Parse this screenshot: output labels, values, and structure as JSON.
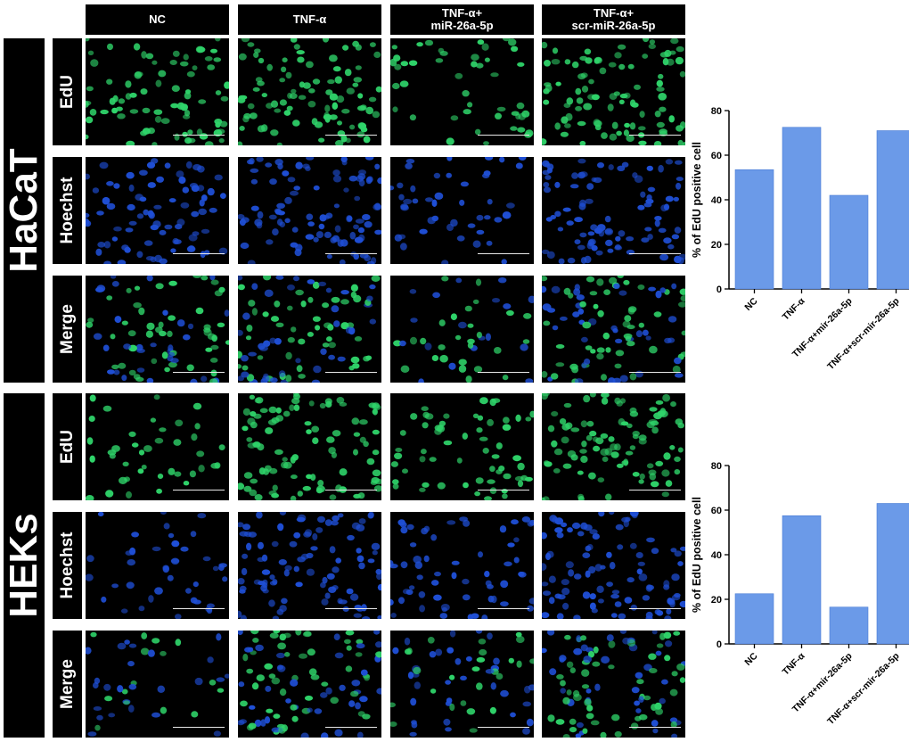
{
  "figure": {
    "column_headers": [
      {
        "line1": "NC",
        "line2": ""
      },
      {
        "line1": "TNF-α",
        "line2": ""
      },
      {
        "line1": "TNF-α+",
        "line2": "miR-26a-5p"
      },
      {
        "line1": "TNF-α+",
        "line2": "scr-miR-26a-5p"
      }
    ],
    "cell_lines": [
      {
        "name": "HaCaT",
        "rows": [
          "EdU",
          "Hoechst",
          "Merge"
        ]
      },
      {
        "name": "HEKs",
        "rows": [
          "EdU",
          "Hoechst",
          "Merge"
        ]
      }
    ],
    "colors": {
      "edu_green": "#2fd46a",
      "hoechst_blue": "#1f4fd6",
      "bar_fill": "#6b9ae8"
    }
  },
  "chart_data": [
    {
      "type": "bar",
      "title": "",
      "xlabel": "",
      "ylabel": "% of EdU positive cell",
      "categories": [
        "NC",
        "TNF-α",
        "TNF-α+mir-26a-5p",
        "TNF-α+scr-mir-26a-5p"
      ],
      "values": [
        53.5,
        72.5,
        42,
        71
      ],
      "ylim": [
        0,
        80
      ],
      "yticks": [
        0,
        20,
        40,
        60,
        80
      ],
      "grid": false,
      "legend": "none"
    },
    {
      "type": "bar",
      "title": "",
      "xlabel": "",
      "ylabel": "% of EdU positive cell",
      "categories": [
        "NC",
        "TNF-α",
        "TNF-α+mir-26a-5p",
        "TNF-α+scr-mir-26a-5p"
      ],
      "values": [
        22.5,
        57.5,
        16.5,
        63
      ],
      "ylim": [
        0,
        80
      ],
      "yticks": [
        0,
        20,
        40,
        60,
        80
      ],
      "grid": false,
      "legend": "none"
    }
  ]
}
